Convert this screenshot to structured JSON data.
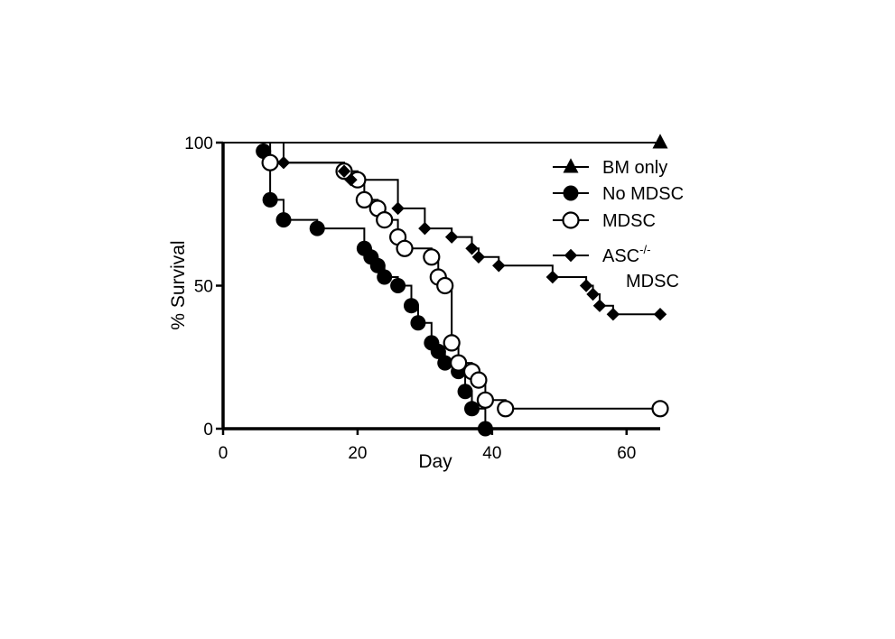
{
  "chart_data": {
    "type": "line",
    "title": "",
    "xlabel": "Day",
    "ylabel": "% Survival",
    "xlim": [
      0,
      65
    ],
    "ylim": [
      0,
      100
    ],
    "xticks": [
      "0",
      "20",
      "40",
      "60"
    ],
    "yticks": [
      "0",
      "50",
      "100"
    ],
    "grid": false,
    "legend_position": "top-right",
    "series": [
      {
        "name": "BM only",
        "marker": "triangle",
        "color": "#000000",
        "step_x": [
          0,
          65
        ],
        "step_y": [
          100,
          100
        ],
        "x": [
          65
        ],
        "y": [
          100
        ]
      },
      {
        "name": "No MDSC",
        "marker": "filled-circle",
        "color": "#000000",
        "step_x": [
          0,
          6,
          7,
          9,
          14,
          21,
          22,
          23,
          24,
          26,
          28,
          29,
          31,
          32,
          33,
          35,
          36,
          37,
          39
        ],
        "step_y": [
          100,
          97,
          80,
          73,
          70,
          63,
          60,
          57,
          53,
          50,
          43,
          37,
          30,
          27,
          23,
          20,
          13,
          7,
          0
        ],
        "x": [
          6,
          7,
          9,
          14,
          21,
          22,
          23,
          24,
          26,
          28,
          29,
          31,
          32,
          33,
          35,
          36,
          37,
          39
        ],
        "y": [
          97,
          80,
          73,
          70,
          63,
          60,
          57,
          53,
          50,
          43,
          37,
          30,
          27,
          23,
          20,
          13,
          7,
          0
        ]
      },
      {
        "name": "MDSC",
        "marker": "open-circle",
        "color": "#000000",
        "step_x": [
          0,
          7,
          18,
          20,
          21,
          23,
          24,
          26,
          27,
          31,
          32,
          33,
          34,
          35,
          37,
          38,
          39,
          42,
          65
        ],
        "step_y": [
          100,
          93,
          90,
          87,
          80,
          77,
          73,
          67,
          63,
          60,
          53,
          50,
          30,
          23,
          20,
          17,
          10,
          7,
          7
        ],
        "x": [
          7,
          18,
          20,
          21,
          23,
          24,
          26,
          27,
          31,
          32,
          33,
          34,
          35,
          37,
          38,
          39,
          42,
          65
        ],
        "y": [
          93,
          90,
          87,
          80,
          77,
          73,
          67,
          63,
          60,
          53,
          50,
          30,
          23,
          20,
          17,
          10,
          7,
          7
        ]
      },
      {
        "name": "ASC-/- MDSC",
        "marker": "filled-diamond",
        "color": "#000000",
        "step_x": [
          0,
          9,
          18,
          19,
          26,
          30,
          34,
          37,
          38,
          41,
          49,
          54,
          55,
          56,
          58,
          65
        ],
        "step_y": [
          100,
          93,
          90,
          87,
          77,
          70,
          67,
          63,
          60,
          57,
          53,
          50,
          47,
          43,
          40,
          40
        ],
        "x": [
          9,
          18,
          19,
          26,
          30,
          34,
          37,
          38,
          41,
          49,
          54,
          55,
          56,
          58,
          65
        ],
        "y": [
          93,
          90,
          87,
          77,
          70,
          67,
          63,
          60,
          57,
          53,
          50,
          47,
          43,
          40,
          40
        ]
      }
    ],
    "legend": [
      {
        "marker": "triangle",
        "label": "BM only"
      },
      {
        "marker": "filled-circle",
        "label": "No MDSC"
      },
      {
        "marker": "open-circle",
        "label": "MDSC"
      },
      {
        "marker": "filled-diamond",
        "label_main": "ASC",
        "label_sup": "-/-",
        "label_line2": "MDSC"
      }
    ]
  }
}
